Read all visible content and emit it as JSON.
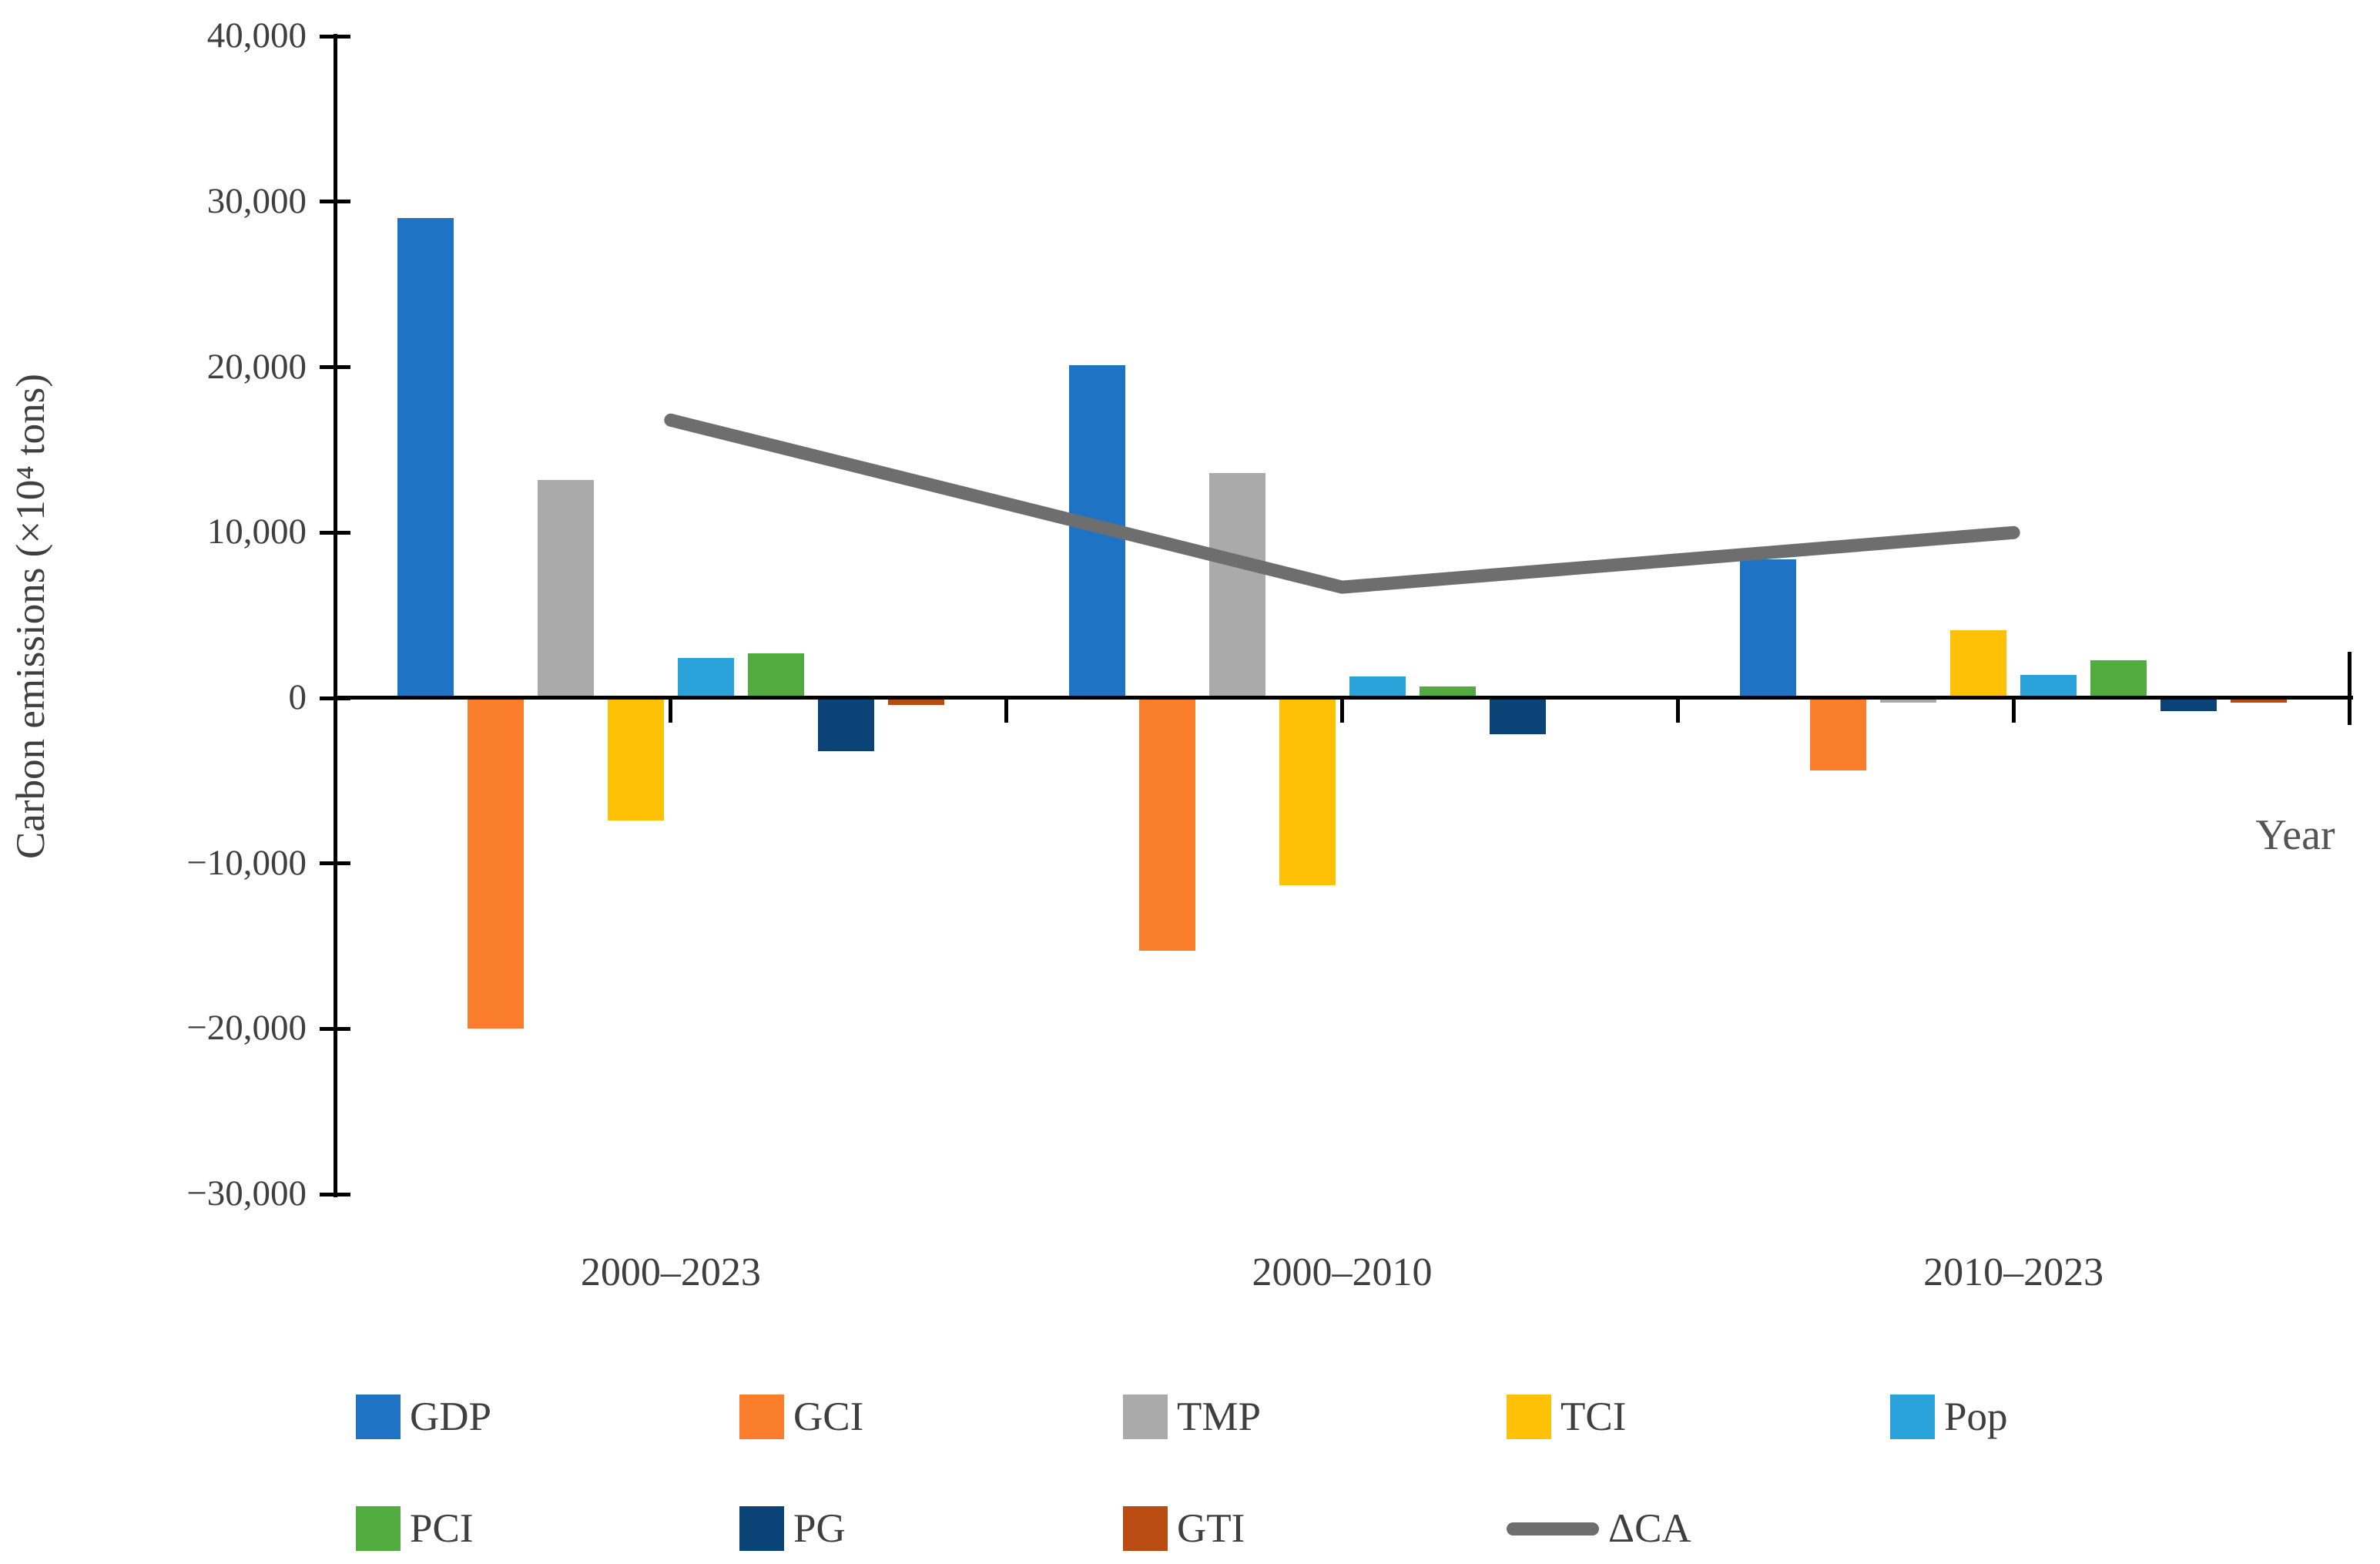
{
  "figure": {
    "background": "#ffffff",
    "axis_color": "#000000",
    "text_color": "#3f3f3f"
  },
  "chart_data": {
    "type": "bar",
    "title": "",
    "xlabel": "Year",
    "ylabel": "Carbon emissions (×10⁴ tons)",
    "categories": [
      "2000–2023",
      "2000–2010",
      "2010–2023"
    ],
    "series": [
      {
        "name": "GDP",
        "color": "#1e73c4",
        "values": [
          29000,
          20100,
          8400
        ]
      },
      {
        "name": "GCI",
        "color": "#f97d2a",
        "values": [
          -20000,
          -15300,
          -4400
        ]
      },
      {
        "name": "TMP",
        "color": "#aaaaaa",
        "values": [
          13200,
          13600,
          -300
        ]
      },
      {
        "name": "TCI",
        "color": "#ffc105",
        "values": [
          -7400,
          -11300,
          4100
        ]
      },
      {
        "name": "Pop",
        "color": "#2aa3db",
        "values": [
          2400,
          1300,
          1400
        ]
      },
      {
        "name": "PCI",
        "color": "#52ab3f",
        "values": [
          2700,
          700,
          2300
        ]
      },
      {
        "name": "PG",
        "color": "#0c4377",
        "values": [
          -3200,
          -2200,
          -800
        ]
      },
      {
        "name": "GTI",
        "color": "#b94c13",
        "values": [
          -400,
          -100,
          -300
        ]
      }
    ],
    "line_series": {
      "name": "ΔCA",
      "color": "#6e6e6e",
      "values": [
        16800,
        6700,
        10000
      ]
    },
    "ylim": [
      -30000,
      40000
    ],
    "ytick_step": 10000,
    "y_tick_labels": [
      "40,000",
      "30,000",
      "20,000",
      "10,000",
      "0",
      "−10,000",
      "−20,000",
      "−30,000"
    ],
    "grid": false,
    "legend_position": "bottom",
    "legend_rows": [
      [
        "GDP",
        "GCI",
        "TMP",
        "TCI",
        "Pop"
      ],
      [
        "PCI",
        "PG",
        "GTI",
        "ΔCA"
      ]
    ]
  }
}
